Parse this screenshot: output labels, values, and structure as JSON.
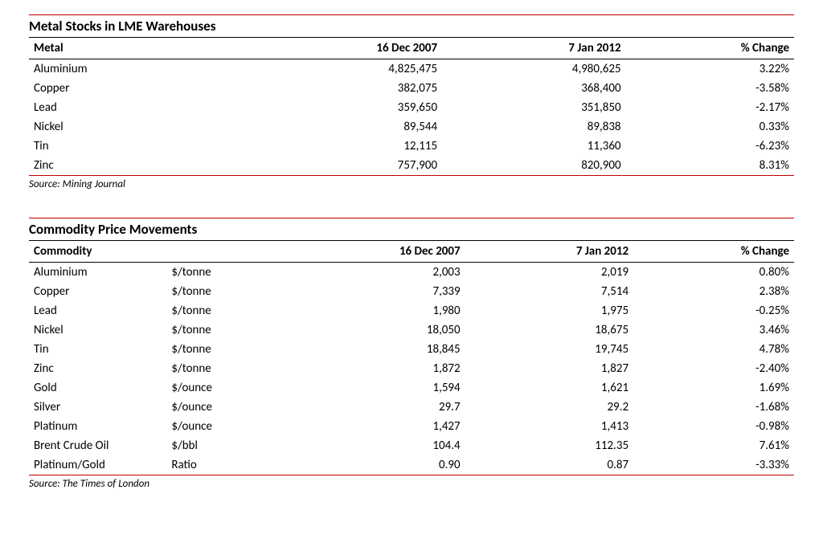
{
  "accent_color": "#c00000",
  "table1": {
    "title": "Metal Stocks in LME Warehouses",
    "headers": [
      "Metal",
      "16 Dec 2007",
      "7 Jan 2012",
      "% Change"
    ],
    "rows": [
      [
        "Aluminium",
        "4,825,475",
        "4,980,625",
        "3.22%"
      ],
      [
        "Copper",
        "382,075",
        "368,400",
        "-3.58%"
      ],
      [
        "Lead",
        "359,650",
        "351,850",
        "-2.17%"
      ],
      [
        "Nickel",
        "89,544",
        "89,838",
        "0.33%"
      ],
      [
        "Tin",
        "12,115",
        "11,360",
        "-6.23%"
      ],
      [
        "Zinc",
        "757,900",
        "820,900",
        "8.31%"
      ]
    ],
    "source": "Source:  Mining Journal"
  },
  "table2": {
    "title": "Commodity Price Movements",
    "headers": [
      "Commodity",
      "",
      "16 Dec 2007",
      "7 Jan 2012",
      "% Change"
    ],
    "rows": [
      [
        "Aluminium",
        "$/tonne",
        "2,003",
        "2,019",
        "0.80%"
      ],
      [
        "Copper",
        "$/tonne",
        "7,339",
        "7,514",
        "2.38%"
      ],
      [
        "Lead",
        "$/tonne",
        "1,980",
        "1,975",
        "-0.25%"
      ],
      [
        "Nickel",
        "$/tonne",
        "18,050",
        "18,675",
        "3.46%"
      ],
      [
        "Tin",
        "$/tonne",
        "18,845",
        "19,745",
        "4.78%"
      ],
      [
        "Zinc",
        "$/tonne",
        "1,872",
        "1,827",
        "-2.40%"
      ],
      [
        "Gold",
        "$/ounce",
        "1,594",
        "1,621",
        "1.69%"
      ],
      [
        "Silver",
        "$/ounce",
        "29.7",
        "29.2",
        "-1.68%"
      ],
      [
        "Platinum",
        "$/ounce",
        "1,427",
        "1,413",
        "-0.98%"
      ],
      [
        "Brent Crude Oil",
        "$/bbl",
        "104.4",
        "112.35",
        "7.61%"
      ],
      [
        " Platinum/Gold",
        "Ratio",
        "0.90",
        "0.87",
        "-3.33%"
      ]
    ],
    "source": "Source:  The Times of London"
  }
}
